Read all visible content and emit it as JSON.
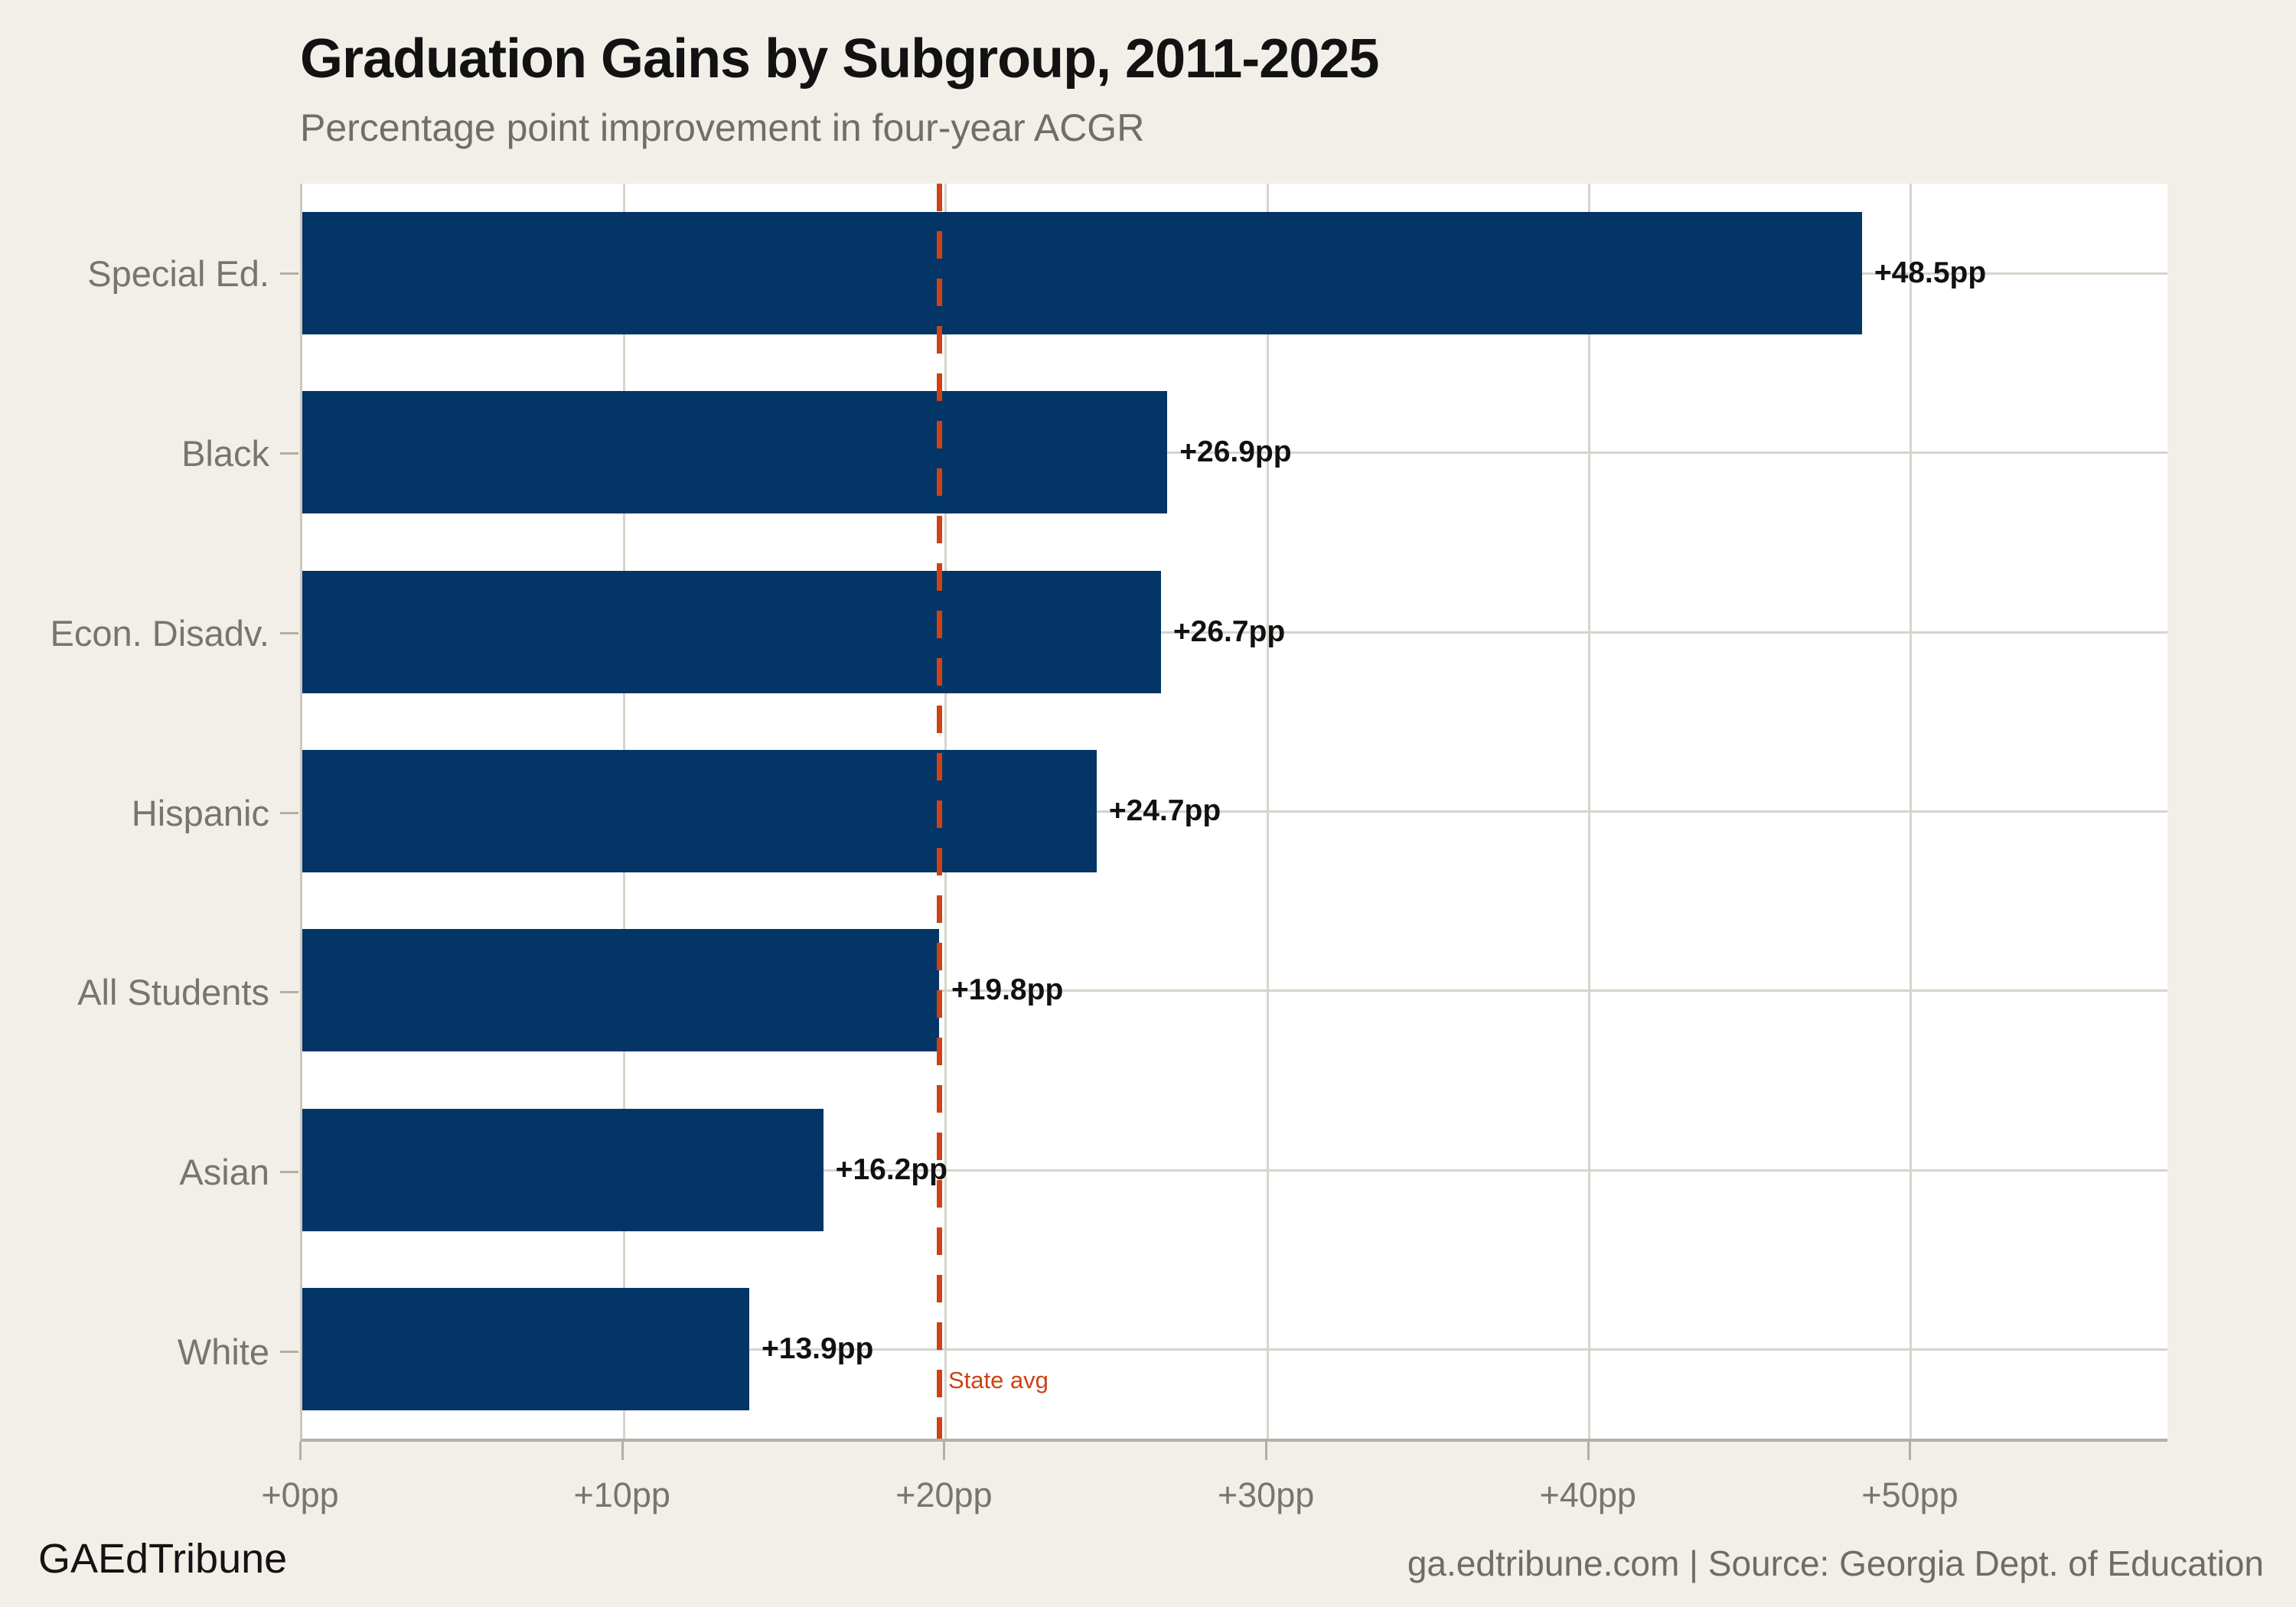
{
  "page": {
    "background": "#f2efe9",
    "footer_left": "GAEdTribune",
    "footer_right": "ga.edtribune.com | Source: Georgia Dept. of Education"
  },
  "chart_data": {
    "type": "bar",
    "orientation": "horizontal",
    "title": "Graduation Gains by Subgroup, 2011-2025",
    "subtitle": "Percentage point improvement in four-year ACGR",
    "categories": [
      "Special Ed.",
      "Black",
      "Econ. Disadv.",
      "Hispanic",
      "All Students",
      "Asian",
      "White"
    ],
    "values": [
      48.5,
      26.9,
      26.7,
      24.7,
      19.8,
      16.2,
      13.9
    ],
    "value_labels": [
      "+48.5pp",
      "+26.9pp",
      "+26.7pp",
      "+24.7pp",
      "+19.8pp",
      "+16.2pp",
      "+13.9pp"
    ],
    "xlabel": "",
    "ylabel": "",
    "xlim": [
      0,
      58
    ],
    "grid": true,
    "bar_color": "#033566",
    "plot_background": "#ffffff",
    "grid_color": "#d8d4cb",
    "x_ticks": [
      {
        "value": 0,
        "label": "+0pp"
      },
      {
        "value": 10,
        "label": "+10pp"
      },
      {
        "value": 20,
        "label": "+20pp"
      },
      {
        "value": 30,
        "label": "+30pp"
      },
      {
        "value": 40,
        "label": "+40pp"
      },
      {
        "value": 50,
        "label": "+50pp"
      }
    ],
    "reference_line": {
      "value": 19.8,
      "label": "State avg",
      "color": "#cf4214",
      "style": "dashed"
    }
  }
}
